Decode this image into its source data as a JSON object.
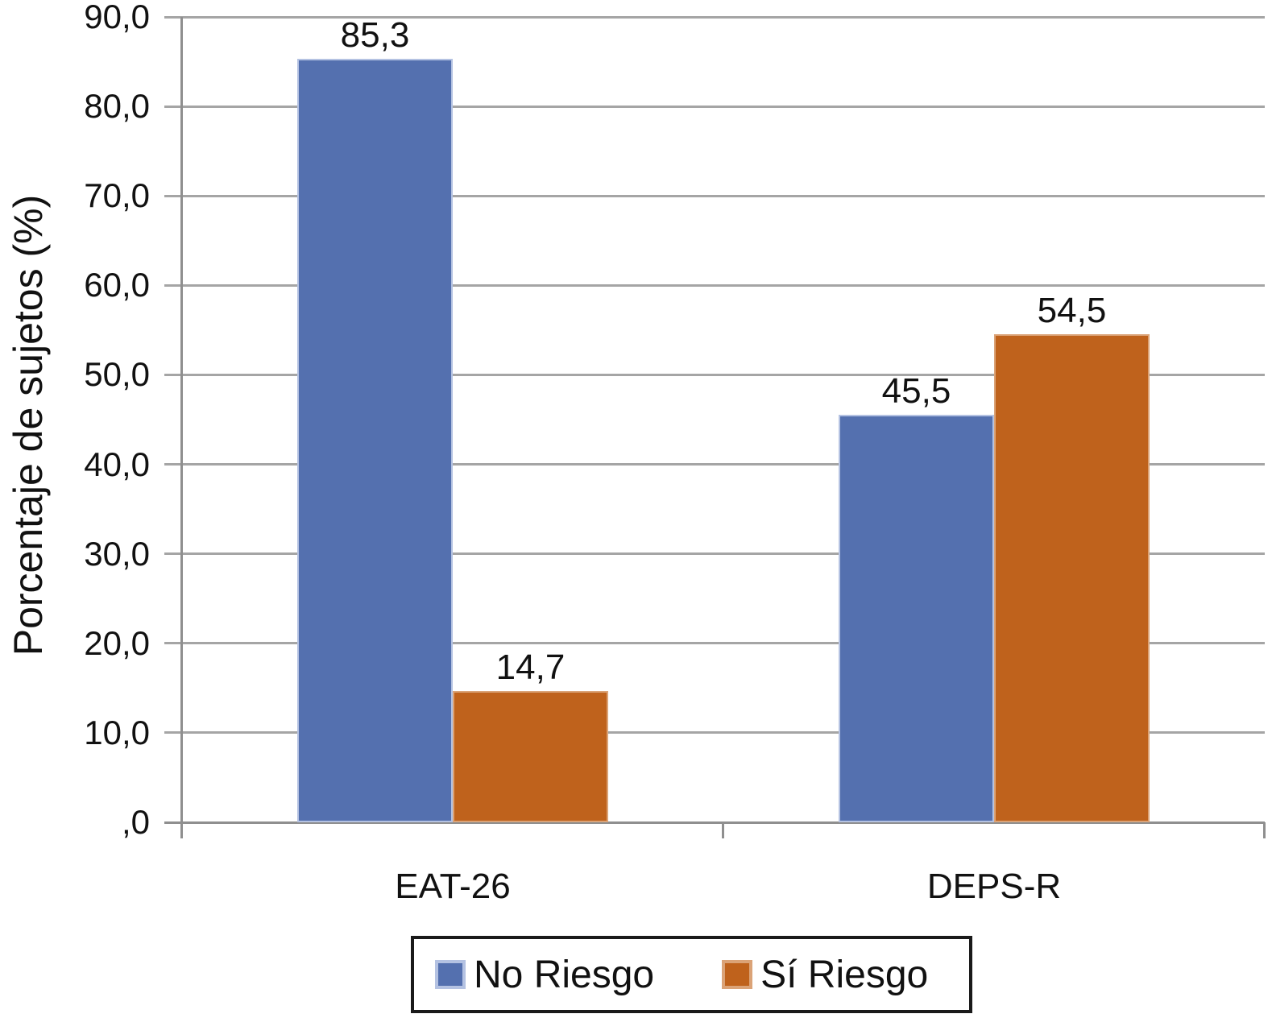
{
  "chart_data": {
    "type": "bar",
    "title": "",
    "xlabel": "",
    "ylabel": "Porcentaje de sujetos (%)",
    "categories": [
      "EAT-26",
      "DEPS-R"
    ],
    "series": [
      {
        "name": "No Riesgo",
        "color": "#5470AF",
        "edge_color": "#B4C2E2",
        "values": [
          85.3,
          45.5
        ],
        "value_labels": [
          "85,3",
          "45,5"
        ]
      },
      {
        "name": "Sí Riesgo",
        "color": "#BF621C",
        "edge_color": "#DBA377",
        "values": [
          14.7,
          54.5
        ],
        "value_labels": [
          "14,7",
          "54,5"
        ]
      }
    ],
    "ylim": [
      0,
      90
    ],
    "y_ticks": [
      {
        "value": 90,
        "label": "90,0"
      },
      {
        "value": 80,
        "label": "80,0"
      },
      {
        "value": 70,
        "label": "70,0"
      },
      {
        "value": 60,
        "label": "60,0"
      },
      {
        "value": 50,
        "label": "50,0"
      },
      {
        "value": 40,
        "label": "40,0"
      },
      {
        "value": 30,
        "label": "30,0"
      },
      {
        "value": 20,
        "label": "20,0"
      },
      {
        "value": 10,
        "label": "10,0"
      },
      {
        "value": 0,
        "label": ",0"
      }
    ],
    "grid": true,
    "legend_position": "bottom",
    "grid_color": "#A5A5A5",
    "axis_color": "#8F8F8F",
    "text_color": "#111111"
  }
}
